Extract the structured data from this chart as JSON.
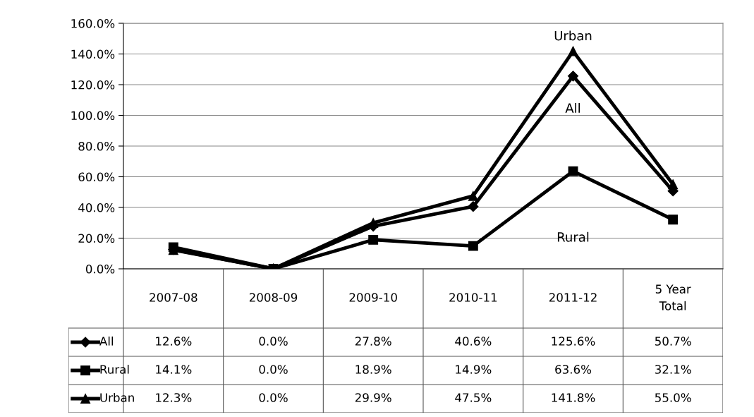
{
  "chart_data": {
    "type": "line",
    "categories": [
      "2007-08",
      "2008-09",
      "2009-10",
      "2010-11",
      "2011-12",
      "5 Year\nTotal"
    ],
    "series": [
      {
        "name": "All",
        "color": "#000000",
        "marker": "diamond",
        "values": [
          12.6,
          0.0,
          27.8,
          40.6,
          125.6,
          50.7
        ],
        "value_labels": [
          "12.6%",
          "0.0%",
          "27.8%",
          "40.6%",
          "125.6%",
          "50.7%"
        ]
      },
      {
        "name": "Rural",
        "color": "#000000",
        "marker": "square",
        "values": [
          14.1,
          0.0,
          18.9,
          14.9,
          63.6,
          32.1
        ],
        "value_labels": [
          "14.1%",
          "0.0%",
          "18.9%",
          "14.9%",
          "63.6%",
          "32.1%"
        ]
      },
      {
        "name": "Urban",
        "color": "#000000",
        "marker": "triangle",
        "values": [
          12.3,
          0.0,
          29.9,
          47.5,
          141.8,
          55.0
        ],
        "value_labels": [
          "12.3%",
          "0.0%",
          "29.9%",
          "47.5%",
          "141.8%",
          "55.0%"
        ]
      }
    ],
    "ylim": [
      0,
      160
    ],
    "yticks": [
      {
        "value": 0,
        "label": "0.0%"
      },
      {
        "value": 20,
        "label": "20.0%"
      },
      {
        "value": 40,
        "label": "40.0%"
      },
      {
        "value": 60,
        "label": "60.0%"
      },
      {
        "value": 80,
        "label": "80.0%"
      },
      {
        "value": 100,
        "label": "100.0%"
      },
      {
        "value": 120,
        "label": "120.0%"
      },
      {
        "value": 140,
        "label": "140.0%"
      },
      {
        "value": 160,
        "label": "160.0%"
      }
    ],
    "grid": "y",
    "line_style": "solid",
    "legend": "bottom left",
    "annotations": [
      "Urban",
      "All",
      "Rural"
    ]
  }
}
